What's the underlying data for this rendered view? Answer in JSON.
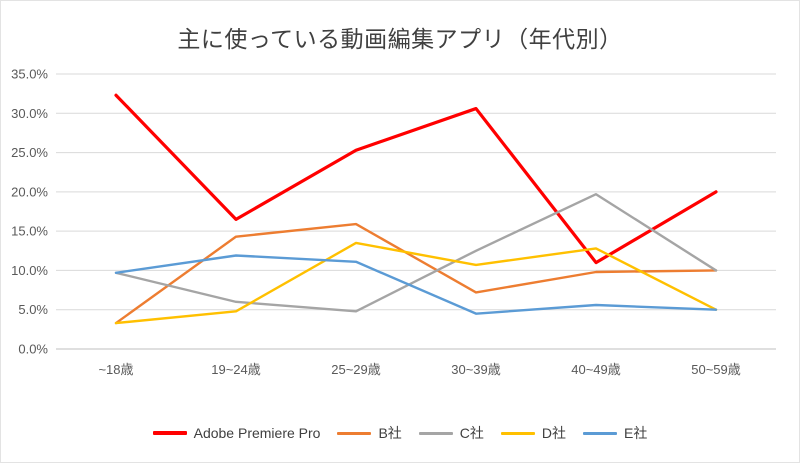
{
  "chart": {
    "background": "#FFFFFF",
    "frame_border_color": "#E3E3E3",
    "grid_color": "#D9D9D9",
    "axis_color": "#BFBFBF",
    "tick_color": "#595959",
    "title_color": "#404040",
    "legend_text_color": "#404040"
  },
  "chart_data": {
    "type": "line",
    "title": "主に使っている動画編集アプリ（年代別）",
    "categories": [
      "~18歳",
      "19~24歳",
      "25~29歳",
      "30~39歳",
      "40~49歳",
      "50~59歳"
    ],
    "series": [
      {
        "name": "Adobe Premiere Pro",
        "color": "#FF0000",
        "emphasized": true,
        "values": [
          32.3,
          16.5,
          25.3,
          30.6,
          11.0,
          20.0
        ]
      },
      {
        "name": "B社",
        "color": "#ED7D31",
        "emphasized": false,
        "values": [
          3.3,
          14.3,
          15.9,
          7.2,
          9.8,
          10.0
        ]
      },
      {
        "name": "C社",
        "color": "#A5A5A5",
        "emphasized": false,
        "values": [
          9.7,
          6.0,
          4.8,
          12.5,
          19.7,
          10.0
        ]
      },
      {
        "name": "D社",
        "color": "#FFC000",
        "emphasized": false,
        "values": [
          3.3,
          4.8,
          13.5,
          10.7,
          12.8,
          5.0
        ]
      },
      {
        "name": "E社",
        "color": "#5B9BD5",
        "emphasized": false,
        "values": [
          9.7,
          11.9,
          11.1,
          4.5,
          5.6,
          5.0
        ]
      }
    ],
    "ylim": [
      0,
      35
    ],
    "ytick_step": 5,
    "ytick_labels": [
      "0.0%",
      "5.0%",
      "10.0%",
      "15.0%",
      "20.0%",
      "25.0%",
      "30.0%",
      "35.0%"
    ],
    "xlabel": "",
    "ylabel": "",
    "grid": true,
    "legend_position": "bottom"
  }
}
